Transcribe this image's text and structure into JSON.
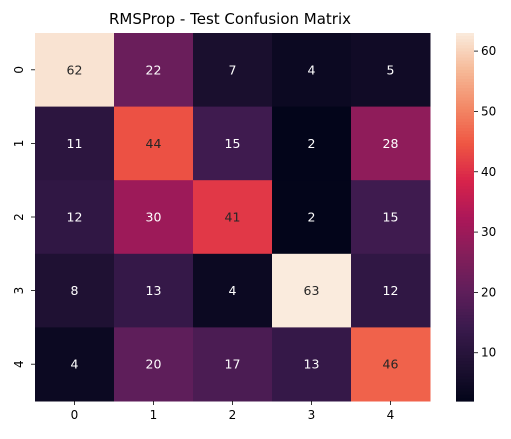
{
  "chart_data": {
    "type": "heatmap",
    "title": "RMSProp - Test Confusion Matrix",
    "xlabel": "",
    "ylabel": "",
    "x_categories": [
      "0",
      "1",
      "2",
      "3",
      "4"
    ],
    "y_categories": [
      "0",
      "1",
      "2",
      "3",
      "4"
    ],
    "values": [
      [
        62,
        22,
        7,
        4,
        5
      ],
      [
        11,
        44,
        15,
        2,
        28
      ],
      [
        12,
        30,
        41,
        2,
        15
      ],
      [
        8,
        13,
        4,
        63,
        12
      ],
      [
        4,
        20,
        17,
        13,
        46
      ]
    ],
    "value_range": [
      2,
      63
    ],
    "colorbar": {
      "ticks": [
        "10",
        "20",
        "30",
        "40",
        "50",
        "60"
      ],
      "tick_values": [
        10,
        20,
        30,
        40,
        50,
        60
      ]
    },
    "colormap": "rocket",
    "grid": false
  }
}
